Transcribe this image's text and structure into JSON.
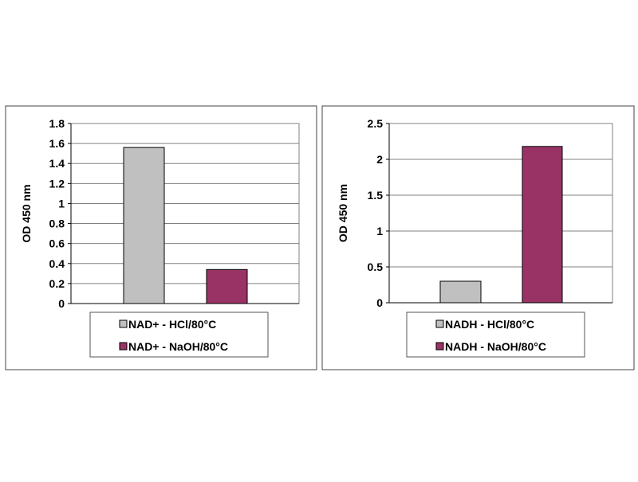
{
  "chart_data": [
    {
      "type": "bar",
      "ylabel": "OD 450 nm",
      "ylim": [
        0,
        1.8
      ],
      "yticks": [
        "0",
        "0.2",
        "0.4",
        "0.6",
        "0.8",
        "1",
        "1.2",
        "1.4",
        "1.6",
        "1.8"
      ],
      "grid": true,
      "legend_placement": "bottom",
      "series": [
        {
          "name": "NAD+ - HCl/80°C",
          "value": 1.56,
          "color": "#c0c0c0"
        },
        {
          "name": "NAD+ - NaOH/80°C",
          "value": 0.34,
          "color": "#993366"
        }
      ]
    },
    {
      "type": "bar",
      "ylabel": "OD 450 nm",
      "ylim": [
        0,
        2.5
      ],
      "yticks": [
        "0",
        "0.5",
        "1",
        "1.5",
        "2",
        "2.5"
      ],
      "grid": true,
      "legend_placement": "bottom",
      "series": [
        {
          "name": "NADH - HCl/80°C",
          "value": 0.3,
          "color": "#c0c0c0"
        },
        {
          "name": "NADH - NaOH/80°C",
          "value": 2.18,
          "color": "#993366"
        }
      ]
    }
  ]
}
